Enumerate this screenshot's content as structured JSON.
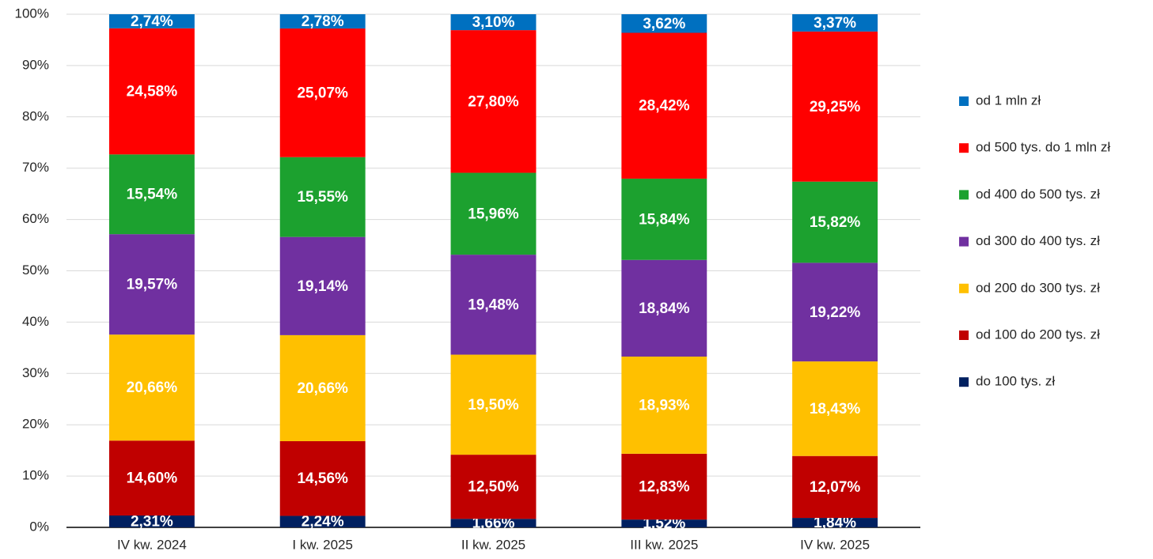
{
  "chart_data": {
    "type": "stacked_bar",
    "categories": [
      "IV kw. 2024",
      "I kw. 2025",
      "II kw. 2025",
      "III kw. 2025",
      "IV kw. 2025"
    ],
    "series": [
      {
        "name": "do 100 tys. zł",
        "color": "#002060",
        "values": [
          2.31,
          2.24,
          1.66,
          1.52,
          1.84
        ],
        "value_labels": [
          "2,31%",
          "2,24%",
          "1,66%",
          "1,52%",
          "1,84%"
        ]
      },
      {
        "name": "od 100 do 200 tys. zł",
        "color": "#c00000",
        "values": [
          14.6,
          14.56,
          12.5,
          12.83,
          12.07
        ],
        "value_labels": [
          "14,60%",
          "14,56%",
          "12,50%",
          "12,83%",
          "12,07%"
        ]
      },
      {
        "name": "od 200 do 300 tys. zł",
        "color": "#ffc000",
        "values": [
          20.66,
          20.66,
          19.5,
          18.93,
          18.43
        ],
        "value_labels": [
          "20,66%",
          "20,66%",
          "19,50%",
          "18,93%",
          "18,43%"
        ]
      },
      {
        "name": "od 300 do 400 tys. zł",
        "color": "#7030a0",
        "values": [
          19.57,
          19.14,
          19.48,
          18.84,
          19.22
        ],
        "value_labels": [
          "19,57%",
          "19,14%",
          "19,48%",
          "18,84%",
          "19,22%"
        ]
      },
      {
        "name": "od 400 do 500 tys. zł",
        "color": "#1ca12f",
        "values": [
          15.54,
          15.55,
          15.96,
          15.84,
          15.82
        ],
        "value_labels": [
          "15,54%",
          "15,55%",
          "15,96%",
          "15,84%",
          "15,82%"
        ]
      },
      {
        "name": "od 500 tys. do 1 mln zł",
        "color": "#ff0000",
        "values": [
          24.58,
          25.07,
          27.8,
          28.42,
          29.25
        ],
        "value_labels": [
          "24,58%",
          "25,07%",
          "27,80%",
          "28,42%",
          "29,25%"
        ]
      },
      {
        "name": "od 1 mln zł",
        "color": "#0070c0",
        "values": [
          2.74,
          2.78,
          3.1,
          3.62,
          3.37
        ],
        "value_labels": [
          "2,74%",
          "2,78%",
          "3,10%",
          "3,62%",
          "3,37%"
        ]
      }
    ],
    "ylim": [
      0,
      100
    ],
    "yticks": [
      {
        "value": 0,
        "label": "0%"
      },
      {
        "value": 10,
        "label": "10%"
      },
      {
        "value": 20,
        "label": "20%"
      },
      {
        "value": 30,
        "label": "30%"
      },
      {
        "value": 40,
        "label": "40%"
      },
      {
        "value": 50,
        "label": "50%"
      },
      {
        "value": 60,
        "label": "60%"
      },
      {
        "value": 70,
        "label": "70%"
      },
      {
        "value": 80,
        "label": "80%"
      },
      {
        "value": 90,
        "label": "90%"
      },
      {
        "value": 100,
        "label": "100%"
      }
    ],
    "grid": true,
    "legend": "right"
  }
}
